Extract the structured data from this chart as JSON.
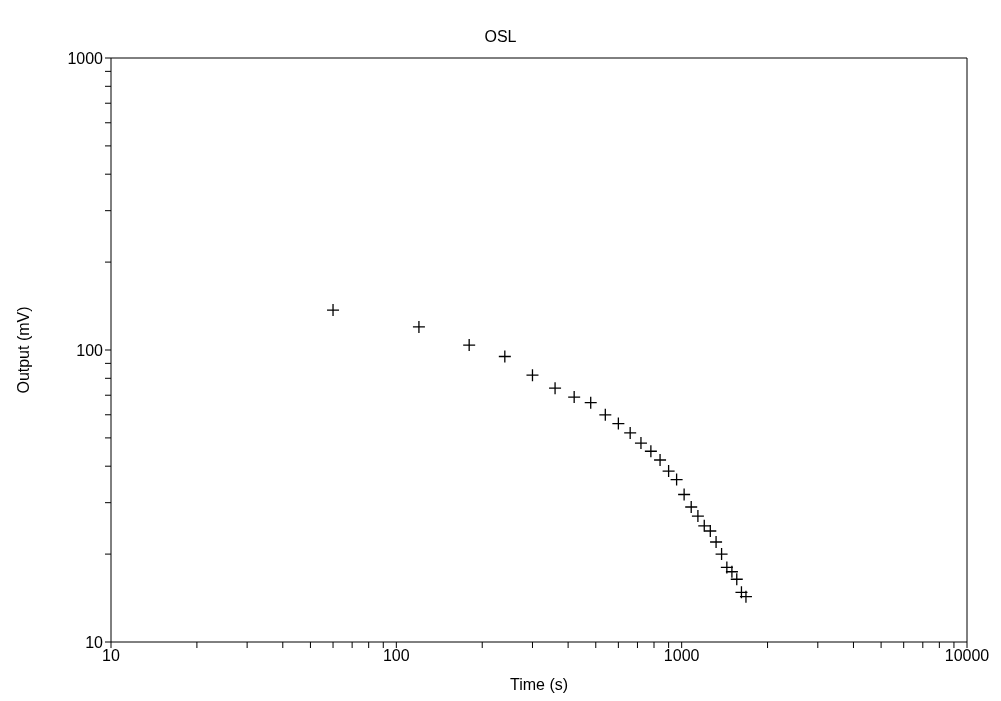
{
  "chart_data": {
    "type": "scatter",
    "title": "OSL",
    "xlabel": "Time (s)",
    "ylabel": "Output (mV)",
    "log": "xy",
    "marker": "cross",
    "xlim": [
      10,
      10000
    ],
    "ylim": [
      10,
      1000
    ],
    "xticks": [
      10,
      {
        "value": 20,
        "label": null
      },
      {
        "value": 30,
        "label": null
      },
      {
        "value": 40,
        "label": null
      },
      {
        "value": 50,
        "label": null
      },
      {
        "value": 60,
        "label": null
      },
      {
        "value": 70,
        "label": null
      },
      {
        "value": 80,
        "label": null
      },
      {
        "value": 90,
        "label": null
      },
      100,
      {
        "value": 200,
        "label": null
      },
      {
        "value": 300,
        "label": null
      },
      {
        "value": 400,
        "label": null
      },
      {
        "value": 500,
        "label": null
      },
      {
        "value": 600,
        "label": null
      },
      {
        "value": 700,
        "label": null
      },
      {
        "value": 800,
        "label": null
      },
      {
        "value": 900,
        "label": null
      },
      1000,
      {
        "value": 2000,
        "label": null
      },
      {
        "value": 3000,
        "label": null
      },
      {
        "value": 4000,
        "label": null
      },
      {
        "value": 5000,
        "label": null
      },
      {
        "value": 6000,
        "label": null
      },
      {
        "value": 7000,
        "label": null
      },
      {
        "value": 8000,
        "label": null
      },
      {
        "value": 9000,
        "label": null
      },
      10000
    ],
    "yticks": [
      10,
      {
        "value": 20,
        "label": null
      },
      {
        "value": 30,
        "label": null
      },
      {
        "value": 40,
        "label": null
      },
      {
        "value": 50,
        "label": null
      },
      {
        "value": 60,
        "label": null
      },
      {
        "value": 70,
        "label": null
      },
      {
        "value": 80,
        "label": null
      },
      {
        "value": 90,
        "label": null
      },
      100,
      {
        "value": 200,
        "label": null
      },
      {
        "value": 300,
        "label": null
      },
      {
        "value": 400,
        "label": null
      },
      {
        "value": 500,
        "label": null
      },
      {
        "value": 600,
        "label": null
      },
      {
        "value": 700,
        "label": null
      },
      {
        "value": 800,
        "label": null
      },
      {
        "value": 900,
        "label": null
      },
      1000
    ],
    "series": [
      {
        "color": "#000000",
        "x": [
          60,
          120,
          180,
          240,
          300,
          360,
          420,
          480,
          540,
          600,
          660,
          720,
          780,
          840,
          900,
          960,
          1020,
          1080,
          1140,
          1200,
          1260,
          1320,
          1380,
          1440,
          1500,
          1560,
          1620,
          1680
        ],
        "values": [
          137,
          120,
          104,
          95,
          82,
          74,
          69,
          66,
          60,
          56,
          52,
          48,
          45,
          42,
          38.5,
          36,
          32,
          29,
          27,
          25,
          24,
          22,
          20,
          18,
          17.4,
          16.4,
          14.8,
          14.3
        ]
      }
    ]
  }
}
